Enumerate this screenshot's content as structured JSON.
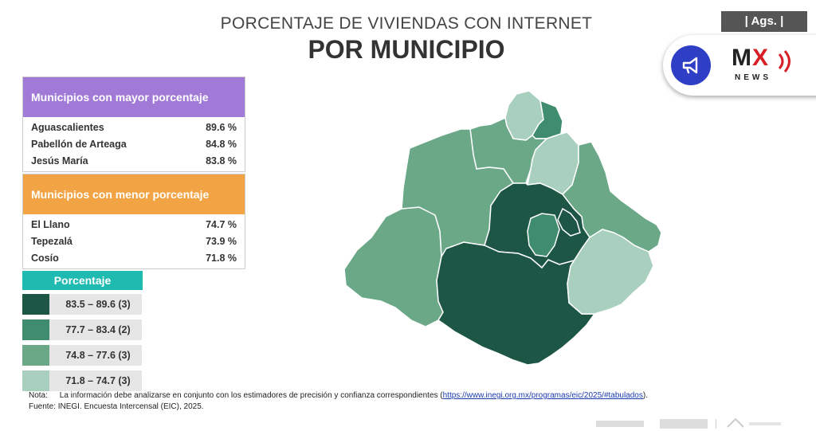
{
  "header": {
    "title_line1": "PORCENTAJE DE VIVIENDAS CON INTERNET",
    "title_line2": "POR MUNICIPIO"
  },
  "state_badge": "| Ags. |",
  "brand": {
    "main": "M",
    "x": "X",
    "sub": "NEWS",
    "accent": "#d61f26",
    "icon": "megaphone-icon",
    "icon_bg": "#2e3fc6"
  },
  "top_panel": {
    "title": "Municipios con mayor porcentaje",
    "color": "#a07ad6",
    "rows": [
      {
        "name": "Aguascalientes",
        "value": "89.6 %"
      },
      {
        "name": "Pabellón de Arteaga",
        "value": "84.8 %"
      },
      {
        "name": "Jesús María",
        "value": "83.8 %"
      }
    ]
  },
  "bottom_panel": {
    "title": "Municipios con menor porcentaje",
    "color": "#f2a444",
    "rows": [
      {
        "name": "El Llano",
        "value": "74.7 %"
      },
      {
        "name": "Tepezalá",
        "value": "73.9 %"
      },
      {
        "name": "Cosío",
        "value": "71.8 %"
      }
    ]
  },
  "legend": {
    "title": "Porcentaje",
    "color": "#1fbab0",
    "items": [
      {
        "label": "83.5 – 89.6 (3)",
        "color": "#1e5646"
      },
      {
        "label": "77.7 – 83.4 (2)",
        "color": "#3f8d6e"
      },
      {
        "label": "74.8 – 77.6 (3)",
        "color": "#6aa888"
      },
      {
        "label": "71.8 – 74.7 (3)",
        "color": "#a9d0be"
      }
    ]
  },
  "map_colors": {
    "dark": "#1e5646",
    "mid": "#3f8d6e",
    "light_mid": "#6aa888",
    "light": "#a9d0be",
    "border": "#ffffff"
  },
  "footer": {
    "note_label": "Nota:",
    "note_text": "La información debe analizarse en conjunto con los estimadores de precisión y confianza correspondientes (",
    "note_link": "https://www.inegi.org.mx/programas/eic/2025/#tabulados",
    "note_end": ").",
    "source": "Fuente: INEGI. Encuesta Intercensal (EIC), 2025."
  }
}
